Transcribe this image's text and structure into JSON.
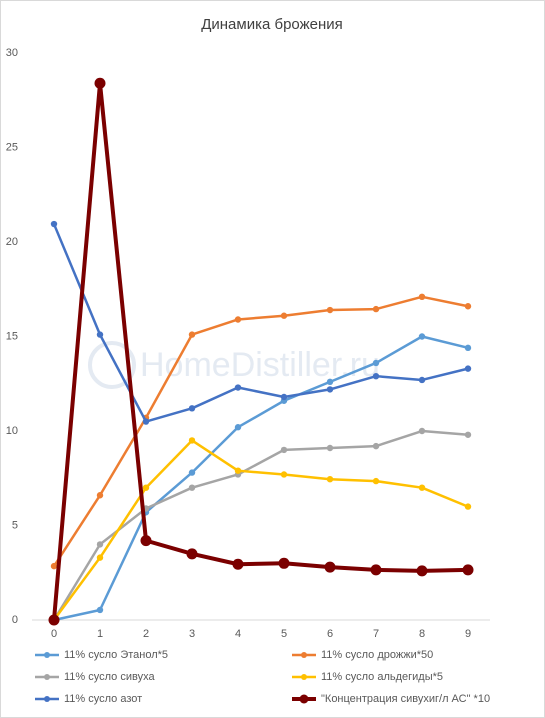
{
  "chart_data": {
    "type": "line",
    "title": "Динамика брожения",
    "watermark": "HomeDistiller.ru",
    "categories": [
      "0",
      "1",
      "2",
      "3",
      "4",
      "5",
      "6",
      "7",
      "8",
      "9"
    ],
    "ylim": [
      0,
      30
    ],
    "yticks": [
      0,
      5,
      10,
      15,
      20,
      25,
      30
    ],
    "grid": false,
    "series": [
      {
        "name": "11% сусло Этанол*5",
        "color": "#5b9bd5",
        "values": [
          0,
          0.53,
          5.7,
          7.8,
          10.2,
          11.6,
          12.6,
          13.6,
          15.0,
          14.4
        ]
      },
      {
        "name": "11% сусло дрожжи*50",
        "color": "#ed7d31",
        "values": [
          2.85,
          6.6,
          10.7,
          15.1,
          15.9,
          16.1,
          16.4,
          16.45,
          17.1,
          16.6
        ]
      },
      {
        "name": "11% сусло сивуха",
        "color": "#a5a5a5",
        "values": [
          0,
          4.0,
          5.9,
          7.0,
          7.7,
          9.0,
          9.1,
          9.2,
          10.0,
          9.8
        ]
      },
      {
        "name": "11% сусло альдегиды*5",
        "color": "#ffc000",
        "values": [
          0,
          3.3,
          7.0,
          9.5,
          7.9,
          7.7,
          7.45,
          7.35,
          7.0,
          6.0
        ]
      },
      {
        "name": "11% сусло азот",
        "color": "#4472c4",
        "values": [
          20.95,
          15.1,
          10.5,
          11.2,
          12.3,
          11.8,
          12.2,
          12.9,
          12.7,
          13.3
        ]
      },
      {
        "name": "\"Концентрация сивухиг/л АС\" *10",
        "color": "#7b0000",
        "values": [
          0,
          28.4,
          4.2,
          3.5,
          2.95,
          3.0,
          2.8,
          2.65,
          2.6,
          2.65
        ]
      }
    ]
  }
}
